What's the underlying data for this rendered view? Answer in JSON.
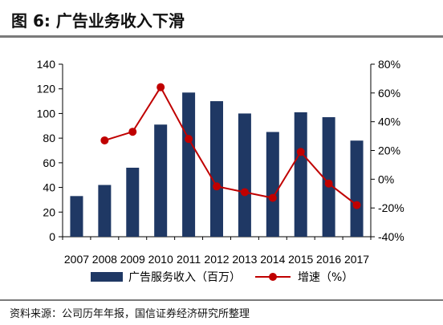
{
  "header": {
    "title": "图 6:  广告业务收入下滑"
  },
  "footer": {
    "source": "资料来源：公司历年年报，国信证券经济研究所整理"
  },
  "colors": {
    "bar": "#1f3864",
    "line": "#c00000",
    "axis": "#000000"
  },
  "chart_data": {
    "type": "bar",
    "categories": [
      "2007",
      "2008",
      "2009",
      "2010",
      "2011",
      "2012",
      "2013",
      "2014",
      "2015",
      "2016",
      "2017"
    ],
    "series": [
      {
        "name": "广告服务收入（百万）",
        "type": "bar",
        "axis": "left",
        "values": [
          33,
          42,
          56,
          91,
          117,
          110,
          100,
          85,
          101,
          97,
          78
        ]
      },
      {
        "name": "增速（%）",
        "type": "line",
        "axis": "right",
        "values": [
          null,
          27,
          33,
          64,
          28,
          -5,
          -9,
          -13,
          19,
          -3,
          -18
        ]
      }
    ],
    "y_left": {
      "min": 0,
      "max": 140,
      "step": 20,
      "ticks": [
        "0",
        "20",
        "40",
        "60",
        "80",
        "100",
        "120",
        "140"
      ]
    },
    "y_right": {
      "min": -40,
      "max": 80,
      "step": 20,
      "ticks": [
        "-40%",
        "-20%",
        "0%",
        "20%",
        "40%",
        "60%",
        "80%"
      ]
    },
    "legend": {
      "position": "bottom",
      "entries": [
        "广告服务收入（百万）",
        "增速（%）"
      ]
    },
    "grid": false
  }
}
